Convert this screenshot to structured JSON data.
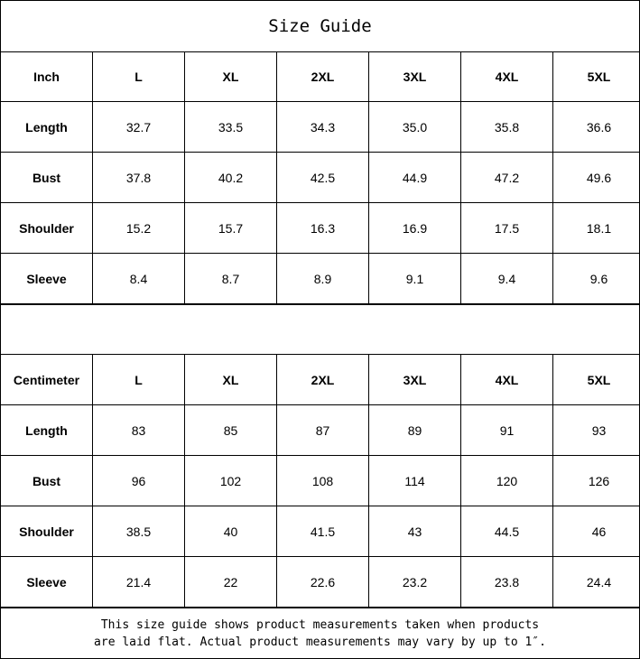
{
  "title": "Size Guide",
  "sizes": [
    "L",
    "XL",
    "2XL",
    "3XL",
    "4XL",
    "5XL"
  ],
  "inch": {
    "unit_label": "Inch",
    "rows": [
      {
        "label": "Length",
        "values": [
          "32.7",
          "33.5",
          "34.3",
          "35.0",
          "35.8",
          "36.6"
        ]
      },
      {
        "label": "Bust",
        "values": [
          "37.8",
          "40.2",
          "42.5",
          "44.9",
          "47.2",
          "49.6"
        ]
      },
      {
        "label": "Shoulder",
        "values": [
          "15.2",
          "15.7",
          "16.3",
          "16.9",
          "17.5",
          "18.1"
        ]
      },
      {
        "label": "Sleeve",
        "values": [
          "8.4",
          "8.7",
          "8.9",
          "9.1",
          "9.4",
          "9.6"
        ]
      }
    ]
  },
  "centimeter": {
    "unit_label": "Centimeter",
    "rows": [
      {
        "label": "Length",
        "values": [
          "83",
          "85",
          "87",
          "89",
          "91",
          "93"
        ]
      },
      {
        "label": "Bust",
        "values": [
          "96",
          "102",
          "108",
          "114",
          "120",
          "126"
        ]
      },
      {
        "label": "Shoulder",
        "values": [
          "38.5",
          "40",
          "41.5",
          "43",
          "44.5",
          "46"
        ]
      },
      {
        "label": "Sleeve",
        "values": [
          "21.4",
          "22",
          "22.6",
          "23.2",
          "23.8",
          "24.4"
        ]
      }
    ]
  },
  "note": {
    "line1": "This size guide shows product measurements taken when products",
    "line2": "are laid flat. Actual product measurements may vary by up to 1″."
  }
}
